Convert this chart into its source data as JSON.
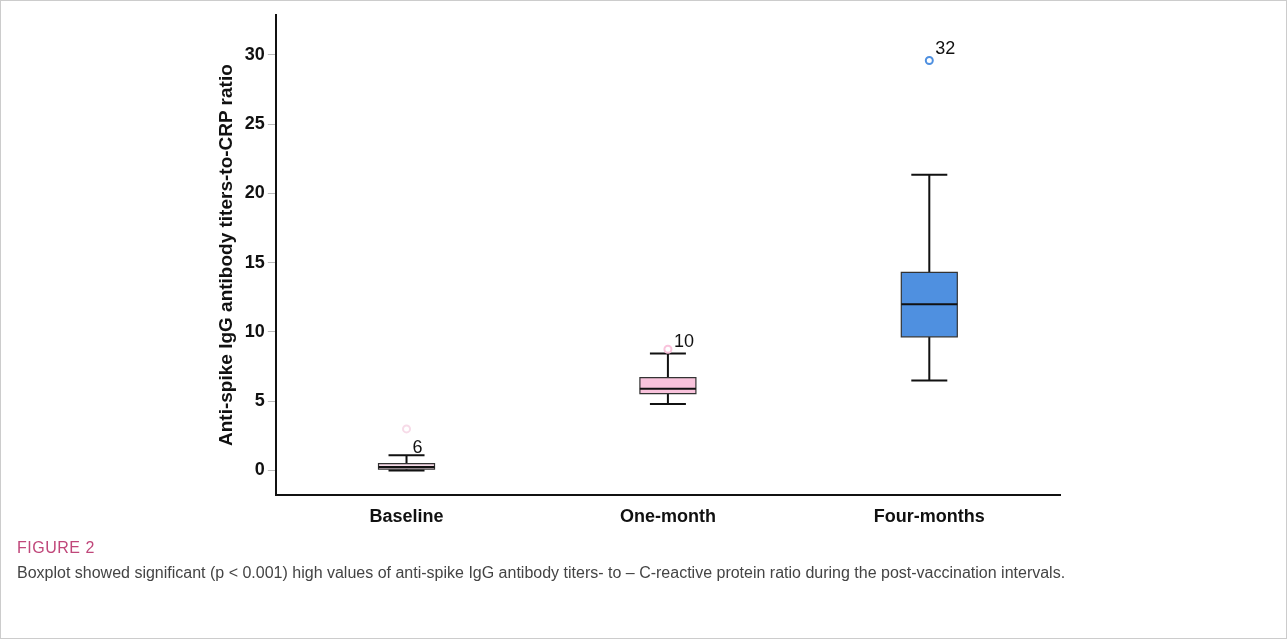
{
  "chart_data": {
    "type": "box",
    "ylabel": "Anti-spike IgG antibody titers-to-CRP ratio",
    "categories": [
      "Baseline",
      "One-month",
      "Four-months"
    ],
    "colors": [
      "#f7dbe8",
      "#f9c3dc",
      "#4f90e0"
    ],
    "boxes": [
      {
        "low": 0,
        "q1": 0.1,
        "median": 0.25,
        "q3": 0.5,
        "high": 1.1,
        "outliers": [
          3.0
        ]
      },
      {
        "low": 4.8,
        "q1": 5.55,
        "median": 5.9,
        "q3": 6.7,
        "high": 8.45,
        "outliers": [
          8.75
        ]
      },
      {
        "low": 6.5,
        "q1": 9.65,
        "median": 12.0,
        "q3": 14.3,
        "high": 21.35,
        "outliers": [
          29.6
        ]
      }
    ],
    "ylim": [
      -1.8,
      32.9
    ],
    "yticks": [
      0,
      5,
      10,
      15,
      20,
      25,
      30
    ],
    "grid": false,
    "legend": false,
    "annotations": [
      {
        "text": "6",
        "x": "Baseline",
        "y": 1.1
      },
      {
        "text": "10",
        "x": "One-month",
        "y": 8.75
      },
      "32",
      "FIGURE 2",
      "Boxplot showed significant (p < 0.001) high values of anti-spike IgG antibody titers- to – C-reactive protein ratio during the post-vaccination intervals."
    ]
  }
}
